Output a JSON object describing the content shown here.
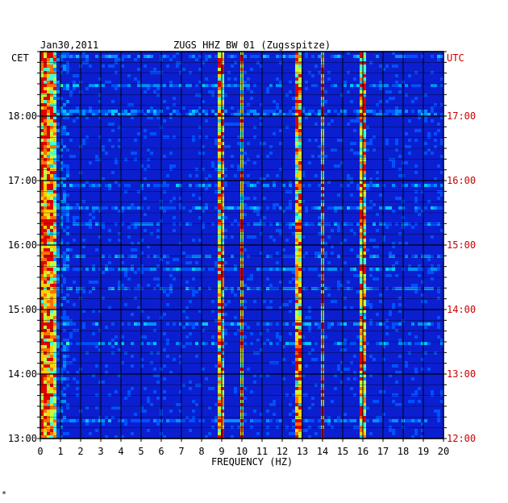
{
  "header": {
    "date": "Jan30,2011",
    "station": "ZUGS HHZ BW 01 (Zugsspitze)",
    "left_zone": "CET",
    "right_zone": "UTC"
  },
  "footer": {
    "mark": "*"
  },
  "chart_data": {
    "type": "heatmap",
    "title": "ZUGS HHZ BW 01 (Zugsspitze)",
    "date": "Jan30,2011",
    "xlabel": "FREQUENCY (HZ)",
    "xlim": [
      0,
      20
    ],
    "x_ticks": [
      "0",
      "1",
      "2",
      "3",
      "4",
      "5",
      "6",
      "7",
      "8",
      "9",
      "10",
      "11",
      "12",
      "13",
      "14",
      "15",
      "16",
      "17",
      "18",
      "19",
      "20"
    ],
    "y_left_label": "CET",
    "y_left_ticks": [
      "18:00",
      "17:00",
      "16:00",
      "15:00",
      "14:00",
      "13:00"
    ],
    "y_right_label": "UTC",
    "y_right_ticks": [
      "17:00",
      "16:00",
      "15:00",
      "14:00",
      "13:00",
      "12:00"
    ],
    "ylim_cet": [
      "13:00",
      "19:00"
    ],
    "grid": true,
    "colors": {
      "background": "#0b1fd0",
      "low": "#0010b0",
      "mid": "#00c8ff",
      "high": "#ffd000",
      "peak": "#e00000"
    },
    "spectral_lines_hz": [
      0.3,
      9.0,
      10.0,
      12.8,
      14.0,
      16.0
    ]
  }
}
